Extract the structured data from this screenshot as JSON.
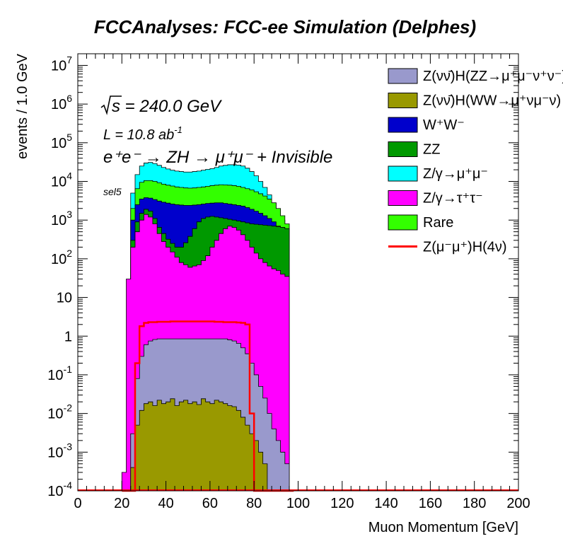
{
  "chart_data": {
    "type": "area",
    "title": "FCCAnalyses: FCC-ee Simulation (Delphes)",
    "xlabel": "Muon Momentum [GeV]",
    "ylabel": "events / 1.0 GeV",
    "xlim": [
      0,
      200
    ],
    "ylim": [
      0.0001,
      20000000
    ],
    "yscale": "log",
    "stacked": true,
    "x_ticks": [
      "0",
      "20",
      "40",
      "60",
      "80",
      "100",
      "120",
      "140",
      "160",
      "180",
      "200"
    ],
    "y_ticks": [
      {
        "mant": "10",
        "exp": "-4",
        "value": 0.0001
      },
      {
        "mant": "10",
        "exp": "-3",
        "value": 0.001
      },
      {
        "mant": "10",
        "exp": "-2",
        "value": 0.01
      },
      {
        "mant": "10",
        "exp": "-1",
        "value": 0.1
      },
      {
        "mant": "1",
        "exp": "",
        "value": 1
      },
      {
        "mant": "10",
        "exp": "",
        "value": 10
      },
      {
        "mant": "10",
        "exp": "2",
        "value": 100
      },
      {
        "mant": "10",
        "exp": "3",
        "value": 1000
      },
      {
        "mant": "10",
        "exp": "4",
        "value": 10000
      },
      {
        "mant": "10",
        "exp": "5",
        "value": 100000
      },
      {
        "mant": "10",
        "exp": "6",
        "value": 1000000
      },
      {
        "mant": "10",
        "exp": "7",
        "value": 10000000
      }
    ],
    "annotations": {
      "sqrt_s_label": "s = 240.0 GeV",
      "lumi_label": "L = 10.8 ab",
      "lumi_exp": "-1",
      "process_label": "e⁺e⁻ → ZH → μ⁺μ⁻ + Invisible",
      "selection": "sel5"
    },
    "legend_position": "top-right",
    "x": [
      20,
      22,
      24,
      26,
      28,
      30,
      32,
      34,
      36,
      38,
      40,
      42,
      44,
      46,
      48,
      50,
      52,
      54,
      56,
      58,
      60,
      62,
      64,
      66,
      68,
      70,
      72,
      74,
      76,
      78,
      80,
      82,
      84,
      86,
      88,
      90,
      92,
      94,
      96
    ],
    "series": [
      {
        "name": "Z(νν̄)H(ZZ→μ⁺μ⁻ν⁺ν⁻)",
        "color": "#9999cc",
        "values": [
          0,
          0,
          0.003,
          0.08,
          0.3,
          0.6,
          0.75,
          0.82,
          0.85,
          0.85,
          0.85,
          0.85,
          0.85,
          0.85,
          0.85,
          0.85,
          0.85,
          0.85,
          0.85,
          0.85,
          0.85,
          0.85,
          0.85,
          0.85,
          0.8,
          0.75,
          0.65,
          0.5,
          0.35,
          0.2,
          0.1,
          0.05,
          0.025,
          0.01,
          0.004,
          0.002,
          0.001,
          0.0005,
          0
        ]
      },
      {
        "name": "Z(νν̄)H(WW→μ⁺νμ⁻ν)",
        "color": "#999900",
        "values": [
          0,
          0,
          0.0004,
          0.005,
          0.012,
          0.018,
          0.02,
          0.016,
          0.022,
          0.018,
          0.02,
          0.024,
          0.016,
          0.02,
          0.022,
          0.018,
          0.02,
          0.017,
          0.024,
          0.02,
          0.018,
          0.022,
          0.02,
          0.018,
          0.016,
          0.015,
          0.012,
          0.008,
          0.005,
          0.003,
          0.002,
          0.001,
          0.0005,
          0,
          0,
          0,
          0,
          0,
          0
        ]
      },
      {
        "name": "W⁺W⁻",
        "color": "#0000cc",
        "values": [
          0,
          0,
          0,
          0,
          0,
          0,
          0,
          0,
          0,
          0,
          0,
          0,
          0,
          0,
          0,
          0,
          0,
          0,
          0,
          0,
          0,
          0,
          0,
          0,
          0,
          0,
          0,
          0,
          0,
          0,
          0,
          0,
          0,
          0,
          0,
          0,
          0,
          0,
          0
        ]
      },
      {
        "name": "ZZ",
        "color": "#009900",
        "values": [
          0,
          0,
          0,
          0,
          0,
          0,
          0,
          0,
          0,
          0,
          0,
          0,
          0,
          0,
          0,
          0,
          0,
          0,
          0,
          0,
          0,
          0,
          0,
          0,
          0,
          0,
          0,
          0,
          0,
          0,
          0,
          0,
          0,
          0,
          0,
          0,
          0,
          0,
          0
        ]
      },
      {
        "name": "Z/γ→μ⁺μ⁻",
        "color": "#00ffff",
        "values": [
          0,
          0,
          0,
          0,
          0,
          0,
          0,
          0,
          0,
          0,
          0,
          0,
          0,
          0,
          0,
          0,
          0,
          0,
          0,
          0,
          0,
          0,
          0,
          0,
          0,
          0,
          0,
          0,
          0,
          0,
          0,
          0,
          0,
          0,
          0,
          0,
          0,
          0,
          0
        ]
      },
      {
        "name": "Z/γ→τ⁺τ⁻",
        "color": "#ff00ff",
        "values": [
          0.0003,
          30,
          200,
          500,
          1000,
          1400,
          1200,
          800,
          450,
          280,
          200,
          150,
          110,
          80,
          70,
          60,
          65,
          70,
          90,
          120,
          200,
          300,
          450,
          600,
          700,
          650,
          550,
          420,
          300,
          200,
          140,
          100,
          80,
          65,
          55,
          50,
          40,
          35,
          0
        ]
      },
      {
        "name": "Rare",
        "color": "#33ff00",
        "values": [
          0,
          0,
          0,
          0,
          0,
          0,
          0,
          0,
          0,
          0,
          0,
          0,
          0,
          0,
          0,
          0,
          0,
          0,
          0,
          0,
          0,
          0,
          0,
          0,
          0,
          0,
          0,
          0,
          0,
          0,
          0,
          0,
          0,
          0,
          0,
          0,
          0,
          0,
          0
        ]
      },
      {
        "name": "Z(μ⁻μ⁺)H(4ν)",
        "color": "#ff0000",
        "line": true,
        "values": [
          0,
          0,
          0,
          0.2,
          1.8,
          2.2,
          2.3,
          2.3,
          2.35,
          2.35,
          2.35,
          2.4,
          2.4,
          2.4,
          2.4,
          2.4,
          2.4,
          2.4,
          2.4,
          2.4,
          2.4,
          2.35,
          2.35,
          2.3,
          2.3,
          2.3,
          2.25,
          2.2,
          2.0,
          0.01,
          0,
          0,
          0,
          0,
          0,
          0,
          0,
          0,
          0
        ]
      }
    ],
    "stack_tops": {
      "zz_top": [
        0,
        0,
        300,
        900,
        1500,
        1900,
        1700,
        1100,
        650,
        450,
        320,
        250,
        200,
        200,
        260,
        380,
        600,
        900,
        1100,
        1200,
        1250,
        1200,
        1150,
        1100,
        1050,
        1000,
        950,
        900,
        850,
        800,
        780,
        760,
        740,
        720,
        700,
        680,
        650,
        600,
        0
      ],
      "ww_top": [
        0,
        0,
        1000,
        2500,
        3500,
        3800,
        3700,
        3400,
        3100,
        2900,
        2750,
        2600,
        2500,
        2450,
        2400,
        2400,
        2450,
        2500,
        2600,
        2700,
        2750,
        2800,
        2800,
        2700,
        2600,
        2500,
        2400,
        2300,
        2100,
        1900,
        1700,
        1500,
        1300,
        1100,
        900,
        700,
        500,
        400,
        0
      ],
      "rare_top": [
        0,
        0,
        2000,
        6500,
        9500,
        10500,
        10500,
        10000,
        9200,
        8500,
        8000,
        7600,
        7200,
        7000,
        6800,
        6700,
        6800,
        7000,
        7200,
        7500,
        7800,
        8000,
        8200,
        8100,
        8000,
        7800,
        7500,
        7000,
        6500,
        6000,
        5400,
        4800,
        4200,
        3500,
        2800,
        2000,
        1300,
        800,
        0
      ],
      "mumu_top": [
        0,
        0,
        5000,
        15000,
        25000,
        30000,
        31000,
        29000,
        26000,
        23000,
        21000,
        19500,
        18500,
        18000,
        17500,
        17500,
        18000,
        18500,
        19500,
        20500,
        21500,
        23000,
        25000,
        26000,
        27000,
        27000,
        26500,
        25000,
        22000,
        18000,
        14000,
        10000,
        7000,
        4500,
        2800,
        1800,
        1000,
        600,
        0
      ]
    }
  }
}
